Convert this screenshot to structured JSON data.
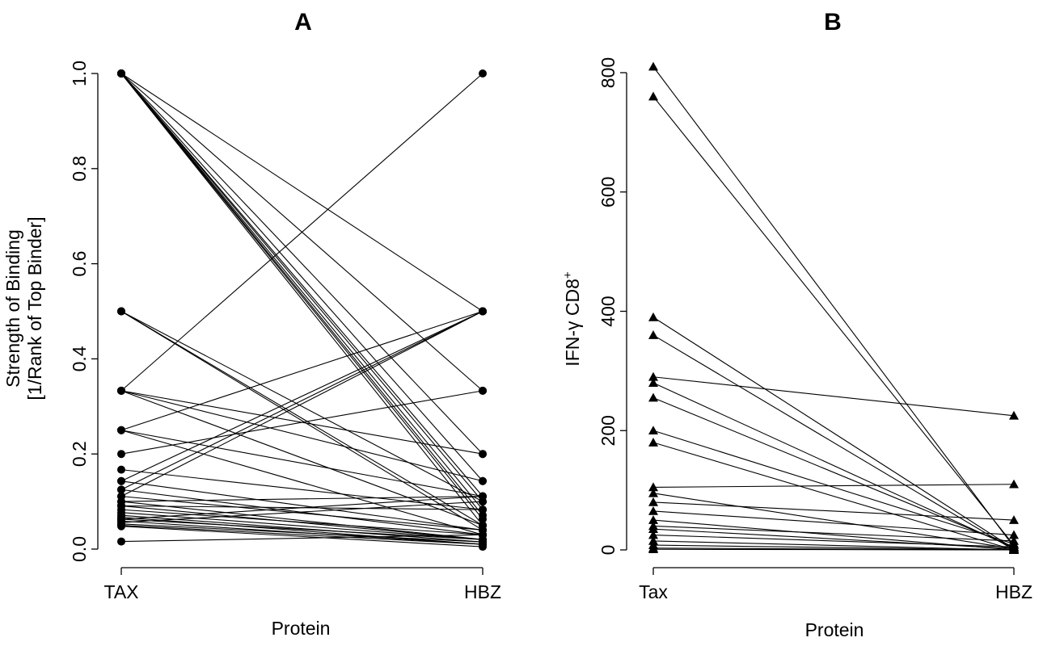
{
  "chart_data": [
    {
      "type": "line",
      "panel": "A",
      "title": "A",
      "xlabel": "Protein",
      "ylabel_lines": [
        "Strength of Binding",
        "[1/Rank of Top Binder]"
      ],
      "categories": [
        "TAX",
        "HBZ"
      ],
      "ylim": [
        0,
        1
      ],
      "yticks": [
        "0.0",
        "0.2",
        "0.4",
        "0.6",
        "0.8",
        "1.0"
      ],
      "ytick_values": [
        0,
        0.2,
        0.4,
        0.6,
        0.8,
        1.0
      ],
      "marker": "circle",
      "pairs": [
        [
          1.0,
          0.5
        ],
        [
          1.0,
          0.333
        ],
        [
          1.0,
          0.2
        ],
        [
          1.0,
          0.143
        ],
        [
          1.0,
          0.111
        ],
        [
          1.0,
          0.1
        ],
        [
          1.0,
          0.083
        ],
        [
          1.0,
          0.071
        ],
        [
          1.0,
          0.063
        ],
        [
          1.0,
          0.05
        ],
        [
          0.5,
          0.1
        ],
        [
          0.5,
          0.05
        ],
        [
          0.5,
          0.04
        ],
        [
          0.333,
          1.0
        ],
        [
          0.333,
          0.2
        ],
        [
          0.333,
          0.143
        ],
        [
          0.333,
          0.05
        ],
        [
          0.25,
          0.5
        ],
        [
          0.25,
          0.111
        ],
        [
          0.25,
          0.03
        ],
        [
          0.2,
          0.333
        ],
        [
          0.167,
          0.083
        ],
        [
          0.143,
          0.5
        ],
        [
          0.143,
          0.04
        ],
        [
          0.125,
          0.5
        ],
        [
          0.125,
          0.03
        ],
        [
          0.111,
          0.5
        ],
        [
          0.111,
          0.04
        ],
        [
          0.1,
          0.111
        ],
        [
          0.1,
          0.02
        ],
        [
          0.091,
          0.083
        ],
        [
          0.091,
          0.02
        ],
        [
          0.083,
          0.03
        ],
        [
          0.077,
          0.02
        ],
        [
          0.071,
          0.015
        ],
        [
          0.067,
          0.01
        ],
        [
          0.063,
          0.111
        ],
        [
          0.063,
          0.02
        ],
        [
          0.059,
          0.01
        ],
        [
          0.056,
          0.1
        ],
        [
          0.053,
          0.015
        ],
        [
          0.05,
          0.01
        ],
        [
          0.048,
          0.005
        ],
        [
          0.016,
          0.03
        ]
      ]
    },
    {
      "type": "line",
      "panel": "B",
      "title": "B",
      "xlabel": "Protein",
      "ylabel": "IFN-γ CD8",
      "ylabel_superscript": "+",
      "categories": [
        "Tax",
        "HBZ"
      ],
      "ylim": [
        0,
        800
      ],
      "yticks": [
        "0",
        "200",
        "400",
        "600",
        "800"
      ],
      "ytick_values": [
        0,
        200,
        400,
        600,
        800
      ],
      "marker": "triangle",
      "pairs": [
        [
          810,
          5
        ],
        [
          760,
          8
        ],
        [
          390,
          2
        ],
        [
          360,
          0
        ],
        [
          290,
          225
        ],
        [
          280,
          3
        ],
        [
          255,
          5
        ],
        [
          200,
          10
        ],
        [
          180,
          0
        ],
        [
          105,
          110
        ],
        [
          95,
          2
        ],
        [
          80,
          50
        ],
        [
          65,
          25
        ],
        [
          50,
          0
        ],
        [
          40,
          15
        ],
        [
          35,
          2
        ],
        [
          25,
          5
        ],
        [
          15,
          0
        ],
        [
          8,
          0
        ],
        [
          3,
          0
        ],
        [
          1,
          0
        ]
      ]
    }
  ]
}
